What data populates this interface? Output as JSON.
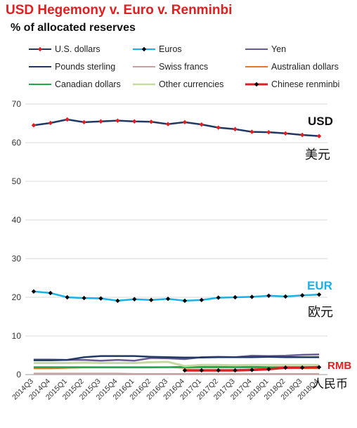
{
  "header": {
    "title": "USD Hegemony v. Euro v. Renminbi",
    "subtitle": "% of allocated reserves"
  },
  "colors": {
    "title": "#e02020",
    "eur_label": "#1ab0e8",
    "rmb_label": "#e02020"
  },
  "annotations": {
    "usd_label": "USD",
    "usd_chinese": "美元",
    "eur_label": "EUR",
    "eur_chinese": "欧元",
    "rmb_label": "RMB",
    "rmb_chinese": "人民币"
  },
  "chart_data": {
    "type": "line",
    "title": "USD Hegemony v. Euro v. Renminbi",
    "subtitle": "% of allocated reserves",
    "xlabel": "",
    "ylabel": "",
    "ylim": [
      0,
      70
    ],
    "yticks": [
      0,
      10,
      20,
      30,
      40,
      50,
      60,
      70
    ],
    "grid": "horizontal",
    "legend_position": "top",
    "categories": [
      "2014Q3",
      "2014Q4",
      "2015Q1",
      "2015Q2",
      "2015Q3",
      "2015Q4",
      "2016Q1",
      "2016Q2",
      "2016Q3",
      "2016Q4",
      "2017Q1",
      "2017Q2",
      "2017Q3",
      "2017Q4",
      "2018Q1",
      "2018Q2",
      "2018Q3",
      "2018Q4"
    ],
    "series": [
      {
        "name": "U.S. dollars",
        "color": "#1f3864",
        "marker": "diamond",
        "marker_color": "#e02020",
        "width": 2.5,
        "values": [
          64.5,
          65.1,
          66.0,
          65.3,
          65.5,
          65.7,
          65.5,
          65.4,
          64.8,
          65.3,
          64.7,
          63.9,
          63.5,
          62.8,
          62.7,
          62.4,
          62.0,
          61.7
        ]
      },
      {
        "name": "Euros",
        "color": "#1ab0e8",
        "marker": "diamond",
        "marker_color": "#000000",
        "width": 2.5,
        "values": [
          21.5,
          21.1,
          20.0,
          19.8,
          19.7,
          19.1,
          19.5,
          19.3,
          19.6,
          19.1,
          19.3,
          19.9,
          20.0,
          20.1,
          20.4,
          20.2,
          20.5,
          20.7
        ]
      },
      {
        "name": "Yen",
        "color": "#6a5a93",
        "marker": "none",
        "width": 2.5,
        "values": [
          3.9,
          3.9,
          3.8,
          3.8,
          3.6,
          3.8,
          3.6,
          4.3,
          4.2,
          4.0,
          4.5,
          4.6,
          4.5,
          4.9,
          4.8,
          4.9,
          5.1,
          5.2
        ]
      },
      {
        "name": "Pounds sterling",
        "color": "#1f3864",
        "marker": "none",
        "width": 2.5,
        "values": [
          3.7,
          3.7,
          3.8,
          4.5,
          4.8,
          4.8,
          4.8,
          4.6,
          4.5,
          4.4,
          4.4,
          4.5,
          4.5,
          4.5,
          4.6,
          4.5,
          4.5,
          4.5
        ]
      },
      {
        "name": "Swiss francs",
        "color": "#c8a0a0",
        "marker": "none",
        "width": 2,
        "values": [
          0.3,
          0.3,
          0.3,
          0.3,
          0.3,
          0.3,
          0.2,
          0.2,
          0.2,
          0.2,
          0.2,
          0.2,
          0.2,
          0.2,
          0.2,
          0.2,
          0.2,
          0.2
        ]
      },
      {
        "name": "Australian dollars",
        "color": "#e07a30",
        "marker": "none",
        "width": 2,
        "values": [
          1.6,
          1.6,
          1.7,
          1.8,
          1.8,
          1.8,
          1.8,
          1.8,
          1.9,
          1.7,
          1.8,
          1.8,
          1.8,
          1.8,
          1.7,
          1.7,
          1.7,
          1.6
        ]
      },
      {
        "name": "Canadian dollars",
        "color": "#1fa84a",
        "marker": "none",
        "width": 2.5,
        "values": [
          1.9,
          1.9,
          1.9,
          1.9,
          1.9,
          1.9,
          1.9,
          1.9,
          1.9,
          2.0,
          2.0,
          2.0,
          2.0,
          2.0,
          1.9,
          1.9,
          1.9,
          1.9
        ]
      },
      {
        "name": "Other currencies",
        "color": "#c6d9a0",
        "marker": "none",
        "width": 3,
        "values": [
          3.0,
          3.0,
          3.0,
          3.1,
          3.0,
          3.0,
          3.0,
          3.2,
          3.3,
          2.2,
          2.5,
          2.5,
          2.4,
          2.5,
          2.5,
          2.5,
          2.5,
          2.5
        ]
      },
      {
        "name": "Chinese renminbi",
        "color": "#e02020",
        "marker": "diamond",
        "marker_color": "#000000",
        "width": 3.5,
        "values": [
          null,
          null,
          null,
          null,
          null,
          null,
          null,
          null,
          null,
          1.1,
          1.1,
          1.1,
          1.1,
          1.2,
          1.4,
          1.8,
          1.8,
          1.9
        ]
      }
    ]
  }
}
